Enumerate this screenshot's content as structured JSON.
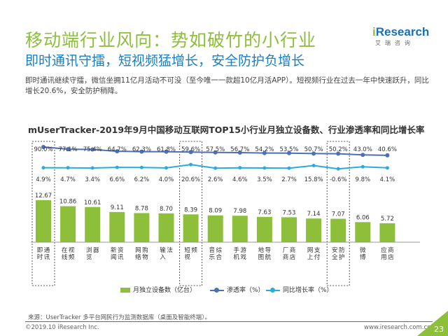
{
  "header": {
    "title": "移动端行业风向：势如破竹的小行业",
    "subtitle": "即时通讯守擂，短视频猛增长，安全防护负增长",
    "description": "即时通讯继续守擂，微信坐拥11亿月活动不可没（至今唯一一款超10亿月活APP）。短视频行业在过去一年中快速跃升，同比增长20.6%，安全防护稍降。"
  },
  "logo": {
    "prefix": "i",
    "main": "Research",
    "sub": "艾瑞咨询"
  },
  "chart_data": {
    "type": "bar",
    "title": "mUserTracker-2019年9月中国移动互联网TOP15小行业月独立设备数、行业渗透率和同比增长率",
    "categories": [
      "即时通讯",
      "在线视频",
      "浏览器",
      "新闻资讯",
      "网络购物",
      "输入法",
      "短视频",
      "音乐综合",
      "手机游戏",
      "地图导航",
      "厂商商店",
      "网上支付",
      "安全防护",
      "微博",
      "应用商店"
    ],
    "series": [
      {
        "name": "月独立设备数（亿台）",
        "type": "bar",
        "color": "#8dbf3a",
        "values": [
          12.67,
          10.86,
          10.61,
          9.11,
          8.78,
          8.7,
          8.39,
          8.09,
          7.98,
          7.63,
          7.53,
          7.14,
          7.07,
          6.06,
          5.72
        ],
        "labels": [
          "12.67",
          "10.86",
          "10.61",
          "9.11",
          "8.78",
          "8.70",
          "8.39",
          "8.09",
          "7.98",
          "7.63",
          "7.53",
          "7.14",
          "7.07",
          "6.06",
          "5.72"
        ]
      },
      {
        "name": "渗透率（%）",
        "type": "line",
        "color": "#4c6fb5",
        "values": [
          90.0,
          77.1,
          75.4,
          64.7,
          62.3,
          61.8,
          59.6,
          57.5,
          56.7,
          54.2,
          53.5,
          50.7,
          50.2,
          43.0,
          40.6
        ],
        "labels": [
          "90.0%",
          "77.1%",
          "75.4%",
          "64.7%",
          "62.3%",
          "61.8%",
          "59.6%",
          "57.5%",
          "56.7%",
          "54.2%",
          "53.5%",
          "50.7%",
          "50.2%",
          "43.0%",
          "40.6%"
        ]
      },
      {
        "name": "同比增长率（%）",
        "type": "line",
        "color": "#29aae1",
        "values": [
          4.9,
          4.7,
          3.4,
          6.6,
          6.2,
          4.0,
          20.6,
          2.6,
          4.6,
          3.5,
          2.7,
          15.8,
          -0.6,
          9.8,
          4.1
        ],
        "labels": [
          "4.9%",
          "4.7%",
          "3.4%",
          "6.6%",
          "6.2%",
          "4.0%",
          "20.6%",
          "2.6%",
          "4.6%",
          "3.5%",
          "2.7%",
          "15.8%",
          "-0.6%",
          "9.8%",
          "4.1%"
        ]
      }
    ],
    "highlighted_categories": [
      "即时通讯",
      "短视频",
      "安全防护"
    ],
    "legend_position": "bottom",
    "grid": false
  },
  "source": "来源：UserTracker 多平台网民行为监测数据库（桌面及智能终端）。",
  "footer": {
    "copyright": "©2019.10 iResearch Inc.",
    "website": "www.iresearch.com.cn",
    "page": "23"
  }
}
